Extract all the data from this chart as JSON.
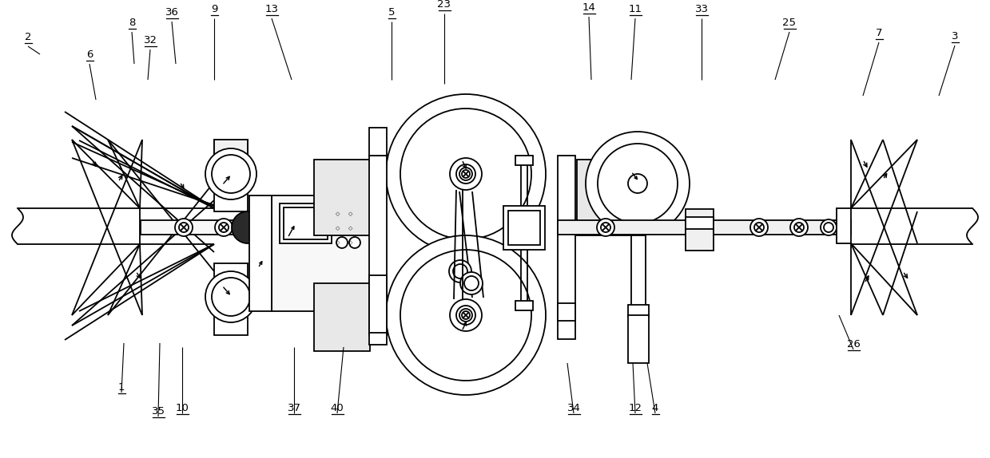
{
  "bg_color": "#ffffff",
  "line_color": "#000000",
  "lw": 1.3,
  "fig_w": 12.39,
  "fig_h": 5.74,
  "labels": [
    [
      "2",
      35,
      53
    ],
    [
      "6",
      112,
      75
    ],
    [
      "32",
      188,
      57
    ],
    [
      "8",
      165,
      35
    ],
    [
      "36",
      215,
      22
    ],
    [
      "9",
      268,
      18
    ],
    [
      "13",
      340,
      18
    ],
    [
      "5",
      490,
      22
    ],
    [
      "23",
      556,
      12
    ],
    [
      "14",
      737,
      16
    ],
    [
      "11",
      795,
      18
    ],
    [
      "33",
      878,
      18
    ],
    [
      "25",
      988,
      35
    ],
    [
      "7",
      1100,
      48
    ],
    [
      "3",
      1195,
      52
    ],
    [
      "26",
      1068,
      438
    ],
    [
      "4",
      820,
      518
    ],
    [
      "12",
      795,
      518
    ],
    [
      "34",
      718,
      518
    ],
    [
      "40",
      422,
      518
    ],
    [
      "37",
      368,
      518
    ],
    [
      "10",
      228,
      518
    ],
    [
      "35",
      198,
      522
    ],
    [
      "1",
      152,
      492
    ]
  ]
}
